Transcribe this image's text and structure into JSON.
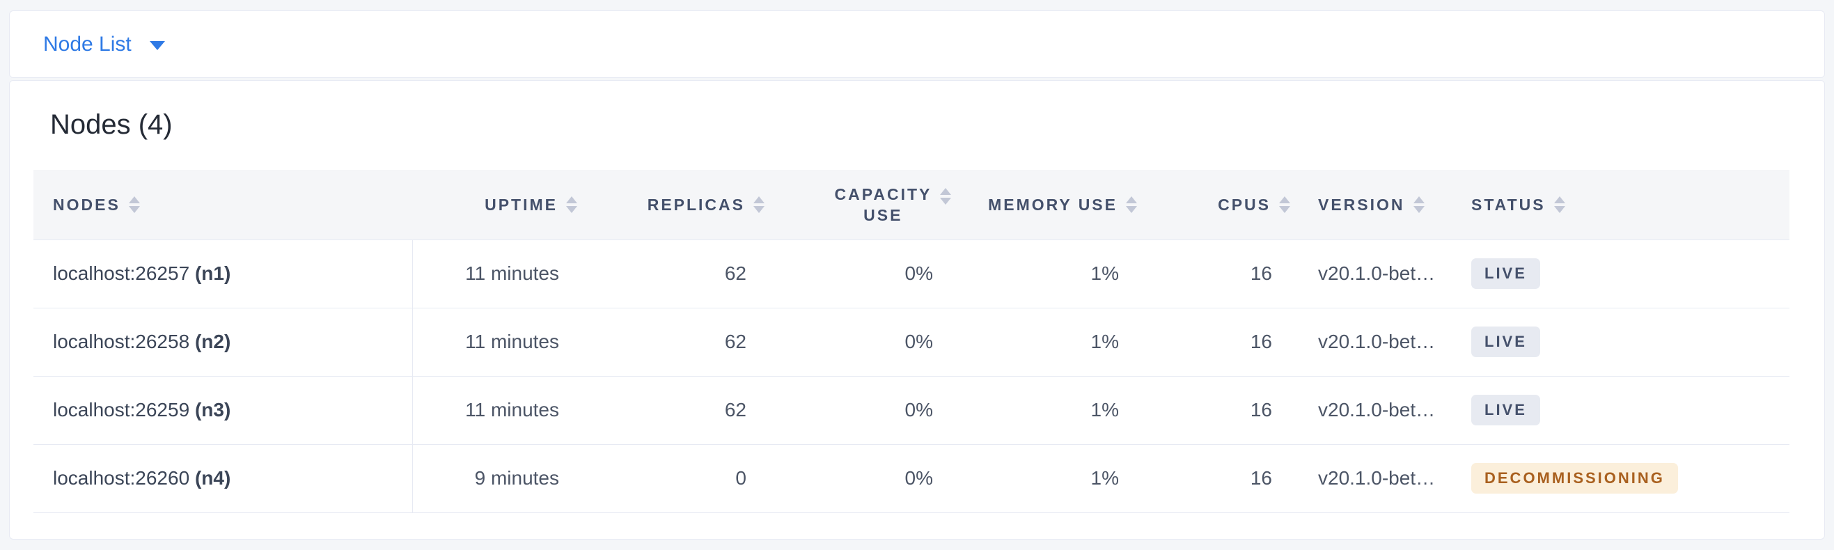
{
  "toolbar": {
    "view_label": "Node List",
    "caret_icon": "caret-down"
  },
  "content": {
    "heading": "Nodes (4)",
    "table": {
      "columns": [
        {
          "key": "nodes",
          "label": "NODES",
          "align": "left",
          "stacked": false,
          "sortable": true
        },
        {
          "key": "uptime",
          "label": "UPTIME",
          "align": "right",
          "stacked": false,
          "sortable": true
        },
        {
          "key": "replicas",
          "label": "REPLICAS",
          "align": "right",
          "stacked": false,
          "sortable": true
        },
        {
          "key": "capacity_use",
          "label": "CAPACITY USE",
          "align": "right",
          "stacked": true,
          "sortable": true
        },
        {
          "key": "memory_use",
          "label": "MEMORY USE",
          "align": "right",
          "stacked": false,
          "sortable": true
        },
        {
          "key": "cpus",
          "label": "CPUS",
          "align": "right",
          "stacked": false,
          "sortable": true
        },
        {
          "key": "version",
          "label": "VERSION",
          "align": "left",
          "stacked": false,
          "sortable": true
        },
        {
          "key": "status",
          "label": "STATUS",
          "align": "left",
          "stacked": false,
          "sortable": true
        }
      ],
      "rows": [
        {
          "address": "localhost:26257",
          "id": "(n1)",
          "uptime": "11 minutes",
          "replicas": "62",
          "capacity_use": "0%",
          "memory_use": "1%",
          "cpus": "16",
          "version": "v20.1.0-bet…",
          "status": {
            "label": "LIVE",
            "type": "live"
          }
        },
        {
          "address": "localhost:26258",
          "id": "(n2)",
          "uptime": "11 minutes",
          "replicas": "62",
          "capacity_use": "0%",
          "memory_use": "1%",
          "cpus": "16",
          "version": "v20.1.0-bet…",
          "status": {
            "label": "LIVE",
            "type": "live"
          }
        },
        {
          "address": "localhost:26259",
          "id": "(n3)",
          "uptime": "11 minutes",
          "replicas": "62",
          "capacity_use": "0%",
          "memory_use": "1%",
          "cpus": "16",
          "version": "v20.1.0-bet…",
          "status": {
            "label": "LIVE",
            "type": "live"
          }
        },
        {
          "address": "localhost:26260",
          "id": "(n4)",
          "uptime": "9 minutes",
          "replicas": "0",
          "capacity_use": "0%",
          "memory_use": "1%",
          "cpus": "16",
          "version": "v20.1.0-bet…",
          "status": {
            "label": "DECOMMISSIONING",
            "type": "decommissioning"
          }
        }
      ]
    }
  },
  "colors": {
    "accent_blue": "#2F7AE5",
    "page_bg": "#F4F6F9",
    "header_row_bg": "#F5F6F8",
    "border": "#E7EAF3",
    "heading_text": "#242A35",
    "header_text": "#44506B",
    "cell_text": "#4C5566",
    "badge_live_bg": "#E7EAF1",
    "badge_live_text": "#44506B",
    "badge_decommissioning_bg": "#FBEFDB",
    "badge_decommissioning_text": "#A9601F"
  }
}
